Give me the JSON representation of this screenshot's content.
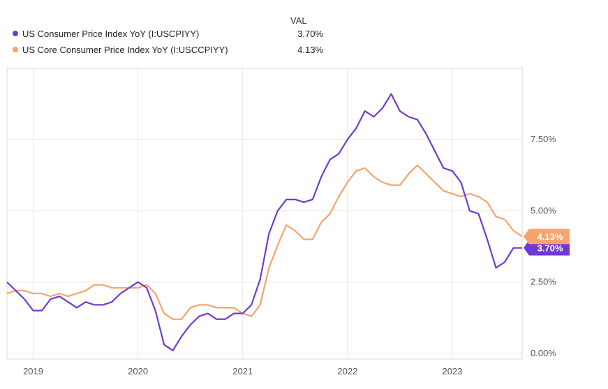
{
  "legend": {
    "header": "VAL",
    "items": [
      {
        "label": "US Consumer Price Index YoY (I:USCPIYY)",
        "value": "3.70%",
        "color": "#6f3ad4"
      },
      {
        "label": "US Core Consumer Price Index YoY (I:USCCPIYY)",
        "value": "4.13%",
        "color": "#f7a36b"
      }
    ]
  },
  "chart_data": {
    "type": "line",
    "title": "",
    "xlabel": "",
    "ylabel": "",
    "x_tick_labels": [
      "2019",
      "2020",
      "2021",
      "2022",
      "2023"
    ],
    "y_tick_labels": [
      "0.00%",
      "2.50%",
      "5.00%",
      "7.50%"
    ],
    "y_ticks": [
      0,
      2.5,
      5,
      7.5
    ],
    "ylim": [
      -0.2,
      10.0
    ],
    "xlim": [
      "2018-10",
      "2023-09"
    ],
    "grid": true,
    "legend_position": "top-left",
    "x": [
      "2018-10",
      "2018-11",
      "2018-12",
      "2019-01",
      "2019-02",
      "2019-03",
      "2019-04",
      "2019-05",
      "2019-06",
      "2019-07",
      "2019-08",
      "2019-09",
      "2019-10",
      "2019-11",
      "2019-12",
      "2020-01",
      "2020-02",
      "2020-03",
      "2020-04",
      "2020-05",
      "2020-06",
      "2020-07",
      "2020-08",
      "2020-09",
      "2020-10",
      "2020-11",
      "2020-12",
      "2021-01",
      "2021-02",
      "2021-03",
      "2021-04",
      "2021-05",
      "2021-06",
      "2021-07",
      "2021-08",
      "2021-09",
      "2021-10",
      "2021-11",
      "2021-12",
      "2022-01",
      "2022-02",
      "2022-03",
      "2022-04",
      "2022-05",
      "2022-06",
      "2022-07",
      "2022-08",
      "2022-09",
      "2022-10",
      "2022-11",
      "2022-12",
      "2023-01",
      "2023-02",
      "2023-03",
      "2023-04",
      "2023-05",
      "2023-06",
      "2023-07",
      "2023-08",
      "2023-09"
    ],
    "series": [
      {
        "name": "US Consumer Price Index YoY (I:USCPIYY)",
        "color": "#6f3ad4",
        "end_label": "3.70%",
        "values": [
          2.5,
          2.2,
          1.9,
          1.5,
          1.5,
          1.9,
          2.0,
          1.8,
          1.6,
          1.8,
          1.7,
          1.7,
          1.8,
          2.1,
          2.3,
          2.5,
          2.3,
          1.5,
          0.3,
          0.1,
          0.6,
          1.0,
          1.3,
          1.4,
          1.2,
          1.2,
          1.4,
          1.4,
          1.7,
          2.6,
          4.2,
          5.0,
          5.4,
          5.4,
          5.3,
          5.4,
          6.2,
          6.8,
          7.0,
          7.5,
          7.9,
          8.5,
          8.3,
          8.6,
          9.1,
          8.5,
          8.3,
          8.2,
          7.7,
          7.1,
          6.5,
          6.4,
          6.0,
          5.0,
          4.9,
          4.0,
          3.0,
          3.2,
          3.7,
          3.7
        ]
      },
      {
        "name": "US Core Consumer Price Index YoY (I:USCCPIYY)",
        "color": "#f7a36b",
        "end_label": "4.13%",
        "values": [
          2.1,
          2.2,
          2.2,
          2.1,
          2.1,
          2.0,
          2.1,
          2.0,
          2.1,
          2.2,
          2.4,
          2.4,
          2.3,
          2.3,
          2.3,
          2.3,
          2.4,
          2.1,
          1.4,
          1.2,
          1.2,
          1.6,
          1.7,
          1.7,
          1.6,
          1.6,
          1.6,
          1.4,
          1.3,
          1.7,
          3.0,
          3.8,
          4.5,
          4.3,
          4.0,
          4.0,
          4.6,
          4.9,
          5.5,
          6.0,
          6.4,
          6.5,
          6.2,
          6.0,
          5.9,
          5.9,
          6.3,
          6.6,
          6.3,
          6.0,
          5.7,
          5.6,
          5.5,
          5.6,
          5.5,
          5.3,
          4.8,
          4.7,
          4.3,
          4.1
        ]
      }
    ]
  }
}
